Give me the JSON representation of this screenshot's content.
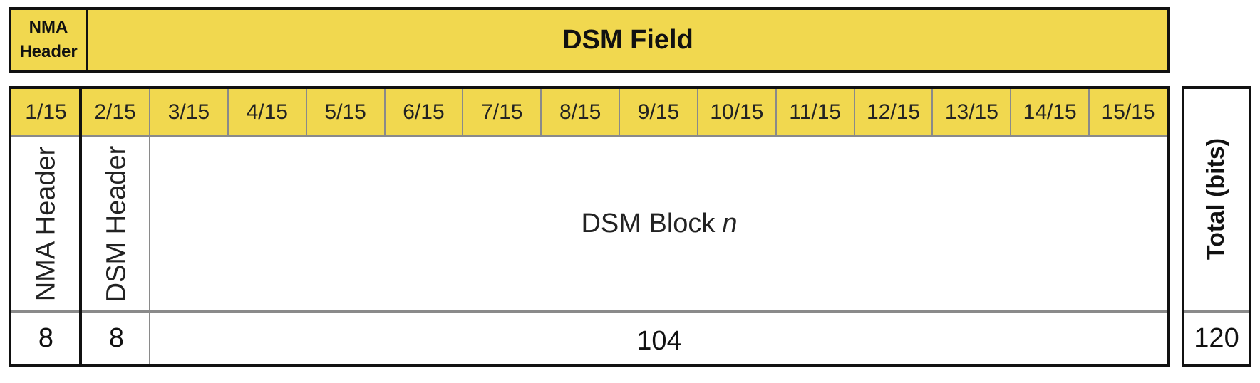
{
  "header": {
    "nma_header": "NMA\nHeader",
    "dsm_field": "DSM Field"
  },
  "subfields": [
    "1/15",
    "2/15",
    "3/15",
    "4/15",
    "5/15",
    "6/15",
    "7/15",
    "8/15",
    "9/15",
    "10/15",
    "11/15",
    "12/15",
    "13/15",
    "14/15",
    "15/15"
  ],
  "rows": {
    "nma_header_label": "NMA Header",
    "dsm_header_label": "DSM Header",
    "dsm_block_label": "DSM Block",
    "dsm_block_var": "n"
  },
  "bits": {
    "nma_header": "8",
    "dsm_header": "8",
    "dsm_block": "104",
    "total": "120"
  },
  "total_label": "Total (bits)",
  "colors": {
    "header_fill": "#f1d84f",
    "border": "#111111",
    "grid": "#8a8a8a"
  }
}
